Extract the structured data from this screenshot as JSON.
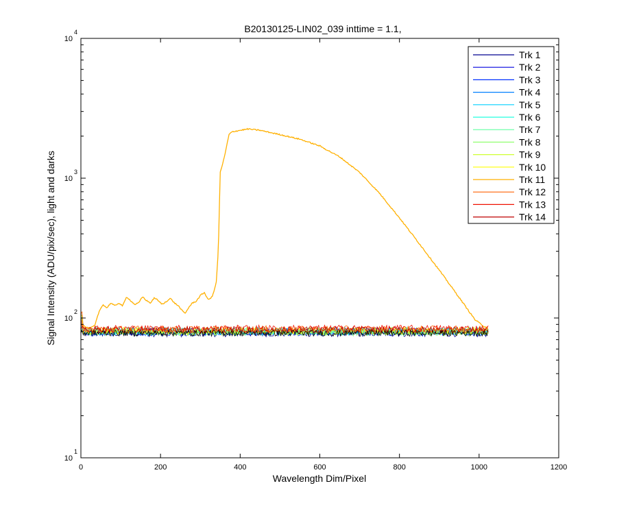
{
  "chart_data": {
    "type": "line",
    "title": "B20130125-LIN02_039 inttime = 1.1,",
    "xlabel": "Wavelength Dim/Pixel",
    "ylabel": "Signal Intensity (ADU/pix/sec), light and darks",
    "xlim": [
      0,
      1200
    ],
    "ylim": [
      10,
      10000
    ],
    "yscale": "log",
    "grid": false,
    "legend_position": "top-right",
    "x_ticks": [
      {
        "value": 0,
        "label": "0"
      },
      {
        "value": 200,
        "label": "200"
      },
      {
        "value": 400,
        "label": "400"
      },
      {
        "value": 600,
        "label": "600"
      },
      {
        "value": 800,
        "label": "800"
      },
      {
        "value": 1000,
        "label": "1000"
      },
      {
        "value": 1200,
        "label": "1200"
      }
    ],
    "y_ticks": [
      {
        "value": 10,
        "base": "10",
        "exp": "1"
      },
      {
        "value": 100,
        "base": "10",
        "exp": "2"
      },
      {
        "value": 1000,
        "base": "10",
        "exp": "3"
      },
      {
        "value": 10000,
        "base": "10",
        "exp": "4"
      }
    ],
    "series": [
      {
        "name": "Trk 1",
        "color": "#00008f",
        "level": 78
      },
      {
        "name": "Trk 2",
        "color": "#0000df",
        "level": 80
      },
      {
        "name": "Trk 3",
        "color": "#0030ff",
        "level": 79
      },
      {
        "name": "Trk 4",
        "color": "#0080ff",
        "level": 80
      },
      {
        "name": "Trk 5",
        "color": "#00cfff",
        "level": 81
      },
      {
        "name": "Trk 6",
        "color": "#20ffdf",
        "level": 80
      },
      {
        "name": "Trk 7",
        "color": "#60ffa0",
        "level": 81
      },
      {
        "name": "Trk 8",
        "color": "#90ff70",
        "level": 79
      },
      {
        "name": "Trk 9",
        "color": "#cfff30",
        "level": 80
      },
      {
        "name": "Trk 10",
        "color": "#ffff00",
        "level": 81
      },
      {
        "name": "Trk 11",
        "color": "#ffb000",
        "level": 81,
        "curve": [
          [
            0,
            90
          ],
          [
            20,
            84
          ],
          [
            35,
            88
          ],
          [
            45,
            110
          ],
          [
            55,
            125
          ],
          [
            65,
            118
          ],
          [
            75,
            128
          ],
          [
            85,
            122
          ],
          [
            95,
            128
          ],
          [
            105,
            122
          ],
          [
            115,
            142
          ],
          [
            125,
            133
          ],
          [
            135,
            125
          ],
          [
            145,
            128
          ],
          [
            155,
            142
          ],
          [
            165,
            133
          ],
          [
            175,
            128
          ],
          [
            185,
            140
          ],
          [
            195,
            132
          ],
          [
            205,
            125
          ],
          [
            215,
            132
          ],
          [
            225,
            138
          ],
          [
            235,
            128
          ],
          [
            245,
            122
          ],
          [
            255,
            112
          ],
          [
            262,
            108
          ],
          [
            270,
            118
          ],
          [
            280,
            128
          ],
          [
            290,
            132
          ],
          [
            300,
            145
          ],
          [
            310,
            152
          ],
          [
            320,
            135
          ],
          [
            330,
            142
          ],
          [
            340,
            180
          ],
          [
            345,
            300
          ],
          [
            350,
            1100
          ],
          [
            360,
            1400
          ],
          [
            372,
            2050
          ],
          [
            380,
            2150
          ],
          [
            400,
            2200
          ],
          [
            420,
            2250
          ],
          [
            450,
            2200
          ],
          [
            500,
            2050
          ],
          [
            550,
            1900
          ],
          [
            600,
            1700
          ],
          [
            650,
            1420
          ],
          [
            700,
            1100
          ],
          [
            750,
            780
          ],
          [
            800,
            520
          ],
          [
            850,
            340
          ],
          [
            900,
            220
          ],
          [
            950,
            140
          ],
          [
            990,
            97
          ],
          [
            1010,
            88
          ],
          [
            1020,
            85
          ]
        ]
      },
      {
        "name": "Trk 12",
        "color": "#ff6000",
        "level": 83
      },
      {
        "name": "Trk 13",
        "color": "#ef1000",
        "level": 84
      },
      {
        "name": "Trk 14",
        "color": "#bf0000",
        "level": 82
      }
    ]
  }
}
